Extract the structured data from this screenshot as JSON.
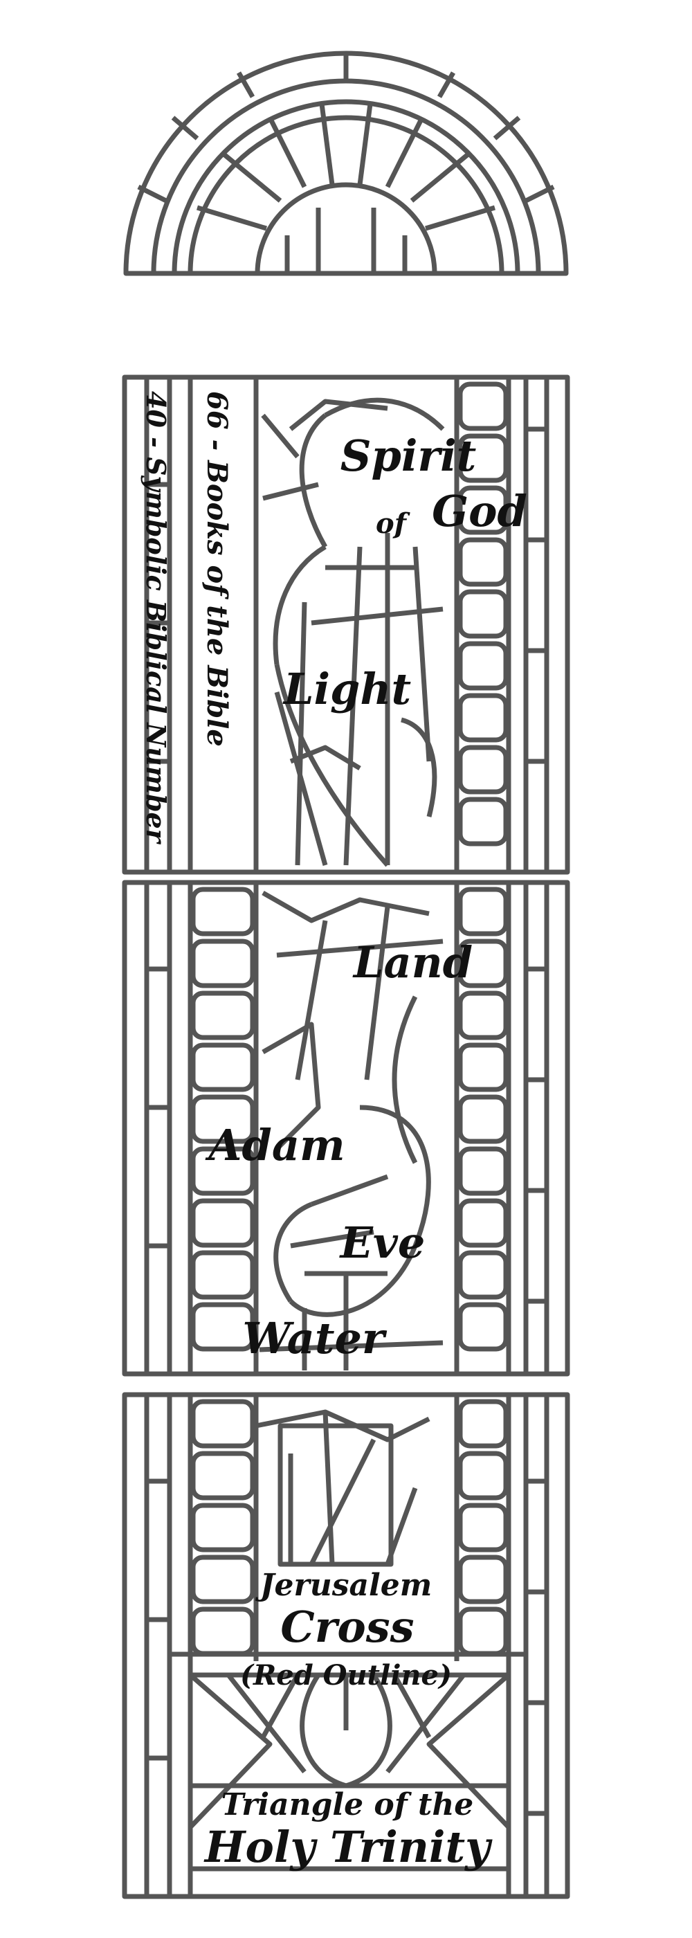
{
  "colors": {
    "lead": "#555555",
    "lead_light": "#6a6a6a",
    "glass": "#ffffff",
    "text": "#111111"
  },
  "side_labels": {
    "books": "66 - Books of the Bible",
    "symbolic": "40 - Symbolic Biblical Number"
  },
  "panel_top": {
    "spirit": "Spirit",
    "of": "of",
    "god": "God",
    "light": "Light"
  },
  "panel_middle": {
    "land": "Land",
    "adam": "Adam",
    "eve": "Eve",
    "water": "Water"
  },
  "panel_bottom": {
    "jerusalem": "Jerusalem",
    "cross": "Cross",
    "red_outline": "(Red Outline)",
    "triangle_line1": "Triangle of the",
    "triangle_line2": "Holy Trinity"
  }
}
